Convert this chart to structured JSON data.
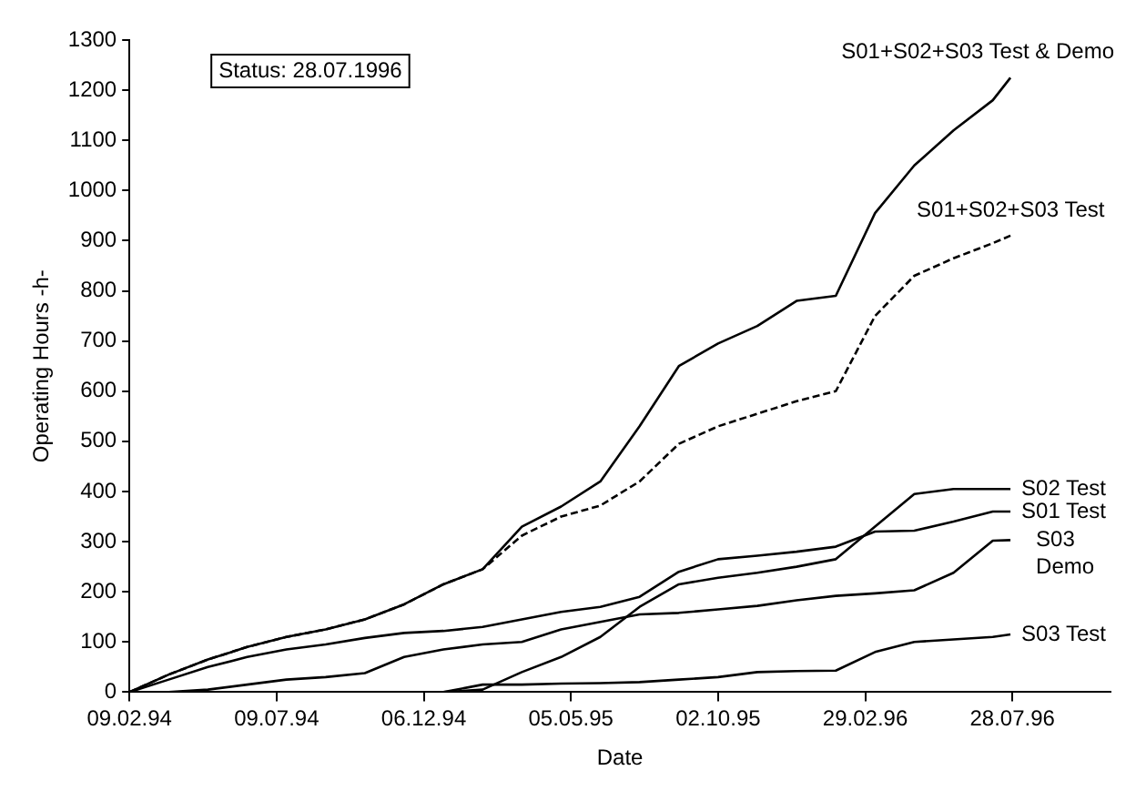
{
  "chart_data": {
    "type": "line",
    "ylabel": "Operating Hours -h-",
    "xlabel": "Date",
    "annotations": [
      "Status: 28.07.1996"
    ],
    "x": [
      "1994-02-09",
      "1994-03-21",
      "1994-04-30",
      "1994-06-09",
      "1994-07-19",
      "1994-08-28",
      "1994-10-07",
      "1994-11-16",
      "1994-12-26",
      "1995-02-04",
      "1995-03-16",
      "1995-04-25",
      "1995-06-04",
      "1995-07-14",
      "1995-08-23",
      "1995-10-02",
      "1995-11-11",
      "1995-12-21",
      "1996-01-30",
      "1996-03-10",
      "1996-04-19",
      "1996-05-29",
      "1996-07-08",
      "1996-07-26"
    ],
    "series": [
      {
        "name": "S01+S02+S03 Test & Demo",
        "color": "#000000",
        "line_style": "solid",
        "values": [
          0,
          35,
          65,
          90,
          110,
          125,
          145,
          175,
          215,
          245,
          330,
          370,
          420,
          530,
          650,
          695,
          730,
          780,
          790,
          955,
          1050,
          1120,
          1180,
          1225
        ]
      },
      {
        "name": "S01+S02+S03 Test",
        "color": "#000000",
        "line_style": "dashed",
        "values": [
          0,
          35,
          65,
          90,
          110,
          125,
          145,
          175,
          215,
          245,
          312,
          350,
          372,
          420,
          495,
          530,
          555,
          580,
          600,
          750,
          830,
          865,
          895,
          910
        ]
      },
      {
        "name": "S02 Test",
        "color": "#000000",
        "line_style": "solid",
        "values": [
          0,
          0,
          0,
          0,
          0,
          0,
          0,
          0,
          0,
          5,
          40,
          70,
          110,
          170,
          215,
          228,
          238,
          250,
          265,
          330,
          395,
          405,
          405,
          405
        ]
      },
      {
        "name": "S01 Test",
        "color": "#000000",
        "line_style": "solid",
        "values": [
          0,
          25,
          50,
          70,
          85,
          95,
          108,
          118,
          122,
          130,
          145,
          160,
          170,
          190,
          240,
          265,
          272,
          280,
          290,
          320,
          322,
          340,
          360,
          360
        ]
      },
      {
        "name": "S03 Demo",
        "color": "#000000",
        "line_style": "solid",
        "values": [
          0,
          0,
          5,
          15,
          25,
          30,
          38,
          70,
          85,
          95,
          100,
          125,
          140,
          155,
          158,
          165,
          172,
          183,
          192,
          197,
          203,
          238,
          302,
          303
        ]
      },
      {
        "name": "S03 Test",
        "color": "#000000",
        "line_style": "solid",
        "values": [
          0,
          0,
          0,
          0,
          0,
          0,
          0,
          0,
          0,
          15,
          15,
          17,
          18,
          20,
          25,
          30,
          40,
          42,
          43,
          80,
          100,
          105,
          110,
          115
        ]
      }
    ],
    "xlim": [
      "1994-02-09",
      "1996-11-05"
    ],
    "xticks": [
      {
        "value": "1994-02-09",
        "label": "09.02.94"
      },
      {
        "value": "1994-07-09",
        "label": "09.07.94"
      },
      {
        "value": "1994-12-06",
        "label": "06.12.94"
      },
      {
        "value": "1995-05-05",
        "label": "05.05.95"
      },
      {
        "value": "1995-10-02",
        "label": "02.10.95"
      },
      {
        "value": "1996-02-29",
        "label": "29.02.96"
      },
      {
        "value": "1996-07-28",
        "label": "28.07.96"
      }
    ],
    "ylim": [
      0,
      1300
    ],
    "yticks": [
      0,
      100,
      200,
      300,
      400,
      500,
      600,
      700,
      800,
      900,
      1000,
      1100,
      1200,
      1300
    ],
    "grid": false,
    "legend": false,
    "marker": "none"
  }
}
